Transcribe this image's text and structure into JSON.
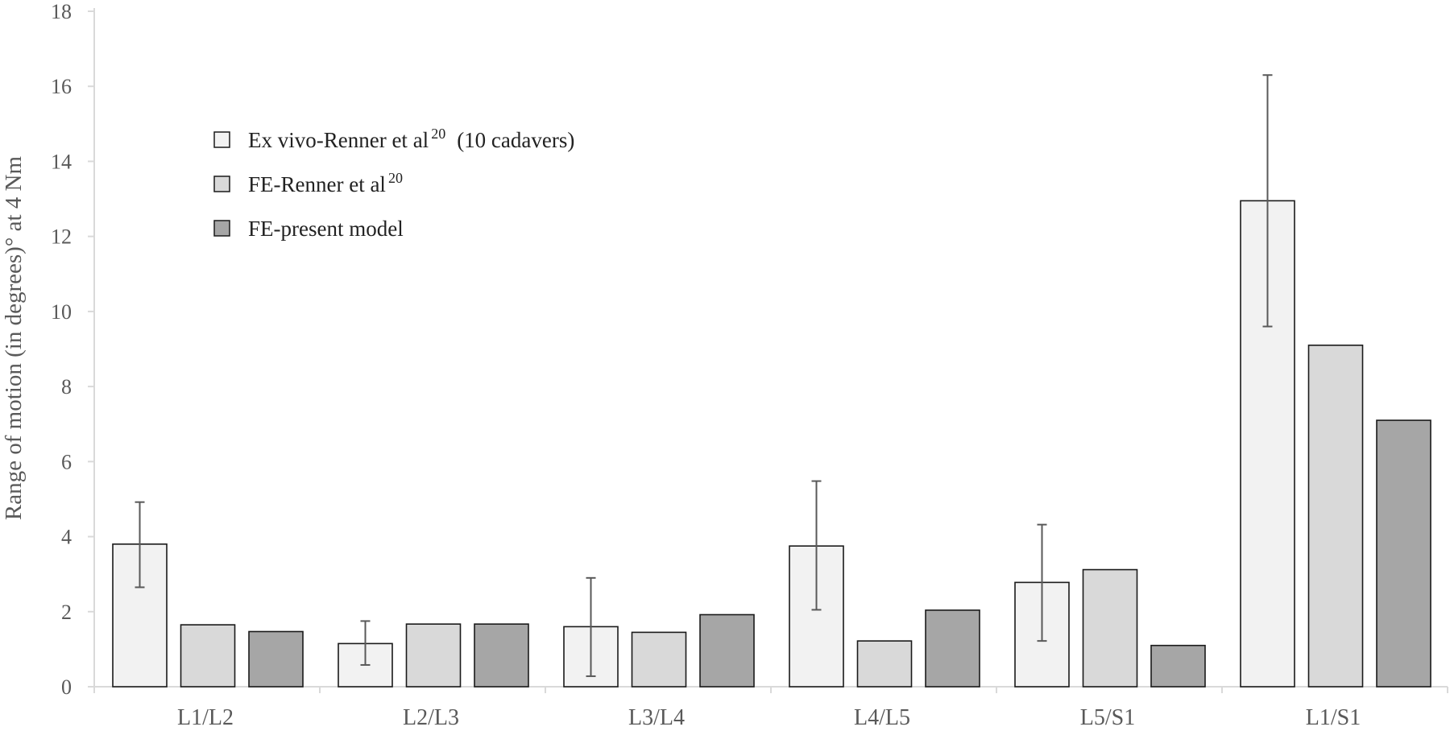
{
  "chart_data": {
    "type": "bar",
    "ylabel": "Range of motion (in degrees)° at 4 Nm",
    "ylim": [
      0,
      18
    ],
    "yticks": [
      0,
      2,
      4,
      6,
      8,
      10,
      12,
      14,
      16,
      18
    ],
    "categories": [
      "L1/L2",
      "L2/L3",
      "L3/L4",
      "L4/L5",
      "L5/S1",
      "L1/S1"
    ],
    "series": [
      {
        "name": "Ex vivo-Renner et al20 (10 cadavers)",
        "legend_main": "Ex vivo-Renner et al",
        "legend_sup": "20",
        "legend_tail": "(10 cadavers)",
        "color": "#f2f2f2",
        "values": [
          3.8,
          1.15,
          1.6,
          3.75,
          2.78,
          12.95
        ],
        "error_low": [
          2.65,
          0.58,
          0.28,
          2.05,
          1.22,
          9.6
        ],
        "error_high": [
          4.92,
          1.75,
          2.9,
          5.48,
          4.32,
          16.3
        ]
      },
      {
        "name": "FE-Renner et al20",
        "legend_main": "FE-Renner et al",
        "legend_sup": "20",
        "legend_tail": "",
        "color": "#d9d9d9",
        "values": [
          1.65,
          1.67,
          1.45,
          1.22,
          3.12,
          9.1
        ]
      },
      {
        "name": "FE-present model",
        "legend_main": "FE-present model",
        "legend_sup": "",
        "legend_tail": "",
        "color": "#a6a6a6",
        "values": [
          1.47,
          1.67,
          1.92,
          2.04,
          1.1,
          7.1
        ]
      }
    ],
    "grid": false,
    "legend_position": "top-left"
  }
}
